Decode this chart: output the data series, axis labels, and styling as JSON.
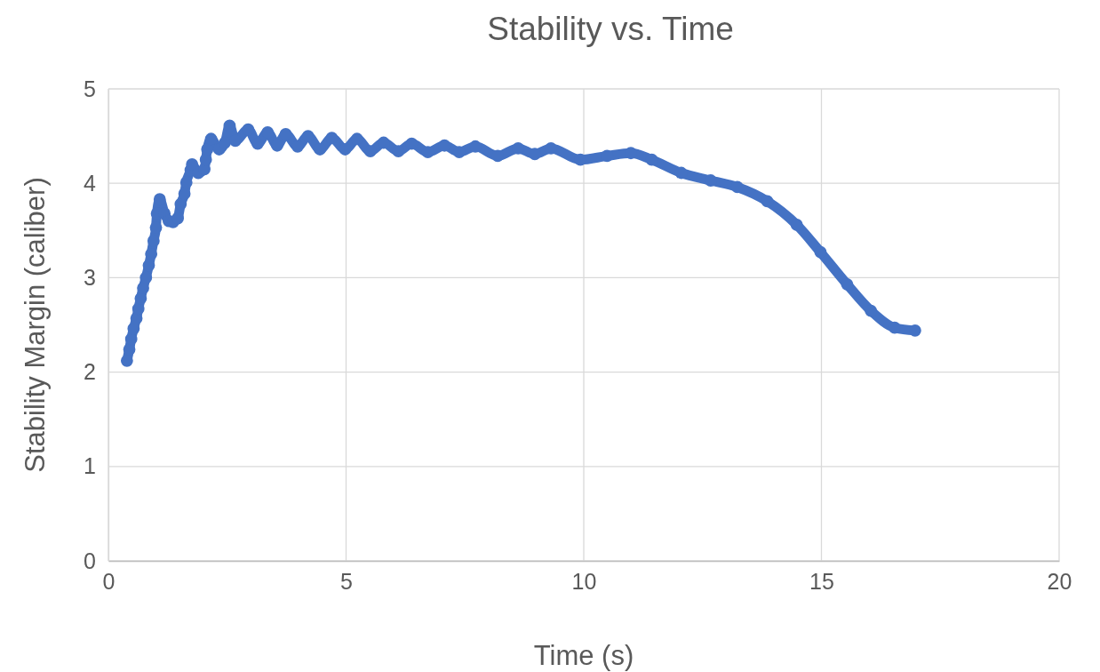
{
  "chart_data": {
    "type": "line",
    "title": "Stability vs. Time",
    "xlabel": "Time (s)",
    "ylabel": "Stability Margin (caliber)",
    "xlim": [
      0,
      20
    ],
    "xticks": [
      0,
      5,
      10,
      15,
      20
    ],
    "ylim": [
      0,
      5
    ],
    "yticks": [
      0,
      1,
      2,
      3,
      4,
      5
    ],
    "grid": true,
    "marker": "circle",
    "line_style": "solid",
    "series": [
      {
        "color": "#4472c4",
        "x": [
          0.39,
          0.44,
          0.48,
          0.53,
          0.59,
          0.63,
          0.68,
          0.73,
          0.79,
          0.85,
          0.9,
          0.95,
          1.0,
          1.02,
          1.08,
          1.18,
          1.27,
          1.36,
          1.46,
          1.52,
          1.6,
          1.64,
          1.73,
          1.76,
          1.89,
          2.02,
          2.05,
          2.08,
          2.16,
          2.33,
          2.45,
          2.55,
          2.67,
          2.94,
          3.14,
          3.35,
          3.55,
          3.73,
          3.98,
          4.2,
          4.45,
          4.7,
          4.98,
          5.23,
          5.51,
          5.79,
          6.1,
          6.38,
          6.72,
          7.07,
          7.38,
          7.72,
          8.19,
          8.62,
          8.97,
          9.31,
          9.93,
          10.49,
          10.99,
          11.43,
          12.05,
          12.67,
          13.23,
          13.86,
          14.48,
          14.98,
          15.54,
          16.04,
          16.54,
          16.97
        ],
        "values": [
          2.12,
          2.24,
          2.35,
          2.46,
          2.57,
          2.67,
          2.78,
          2.89,
          3.0,
          3.13,
          3.25,
          3.39,
          3.53,
          3.68,
          3.83,
          3.68,
          3.6,
          3.59,
          3.63,
          3.78,
          3.89,
          4.01,
          4.14,
          4.2,
          4.11,
          4.15,
          4.25,
          4.36,
          4.47,
          4.36,
          4.43,
          4.61,
          4.45,
          4.57,
          4.42,
          4.54,
          4.4,
          4.52,
          4.39,
          4.5,
          4.36,
          4.48,
          4.36,
          4.47,
          4.34,
          4.43,
          4.34,
          4.42,
          4.33,
          4.4,
          4.33,
          4.39,
          4.29,
          4.37,
          4.31,
          4.37,
          4.25,
          4.29,
          4.32,
          4.25,
          4.11,
          4.03,
          3.96,
          3.81,
          3.56,
          3.27,
          2.93,
          2.65,
          2.47,
          2.44
        ]
      }
    ]
  }
}
